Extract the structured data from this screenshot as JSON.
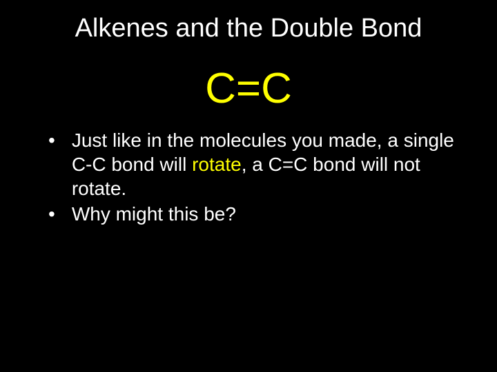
{
  "slide": {
    "background_color": "#000000",
    "title": {
      "text": "Alkenes and the Double Bond",
      "color": "#ffffff",
      "fontsize": 38
    },
    "formula": {
      "text": "C=C",
      "color": "#ffff00",
      "fontsize": 62
    },
    "bullets": [
      {
        "marker": "•",
        "pre": "Just like in the molecules you made, a single C-C bond will ",
        "highlight": "rotate",
        "post": ", a C=C bond will not rotate."
      },
      {
        "marker": "•",
        "pre": "Why might this be?",
        "highlight": "",
        "post": ""
      }
    ],
    "text_color": "#ffffff",
    "highlight_color": "#ffff00",
    "bullet_fontsize": 28
  }
}
